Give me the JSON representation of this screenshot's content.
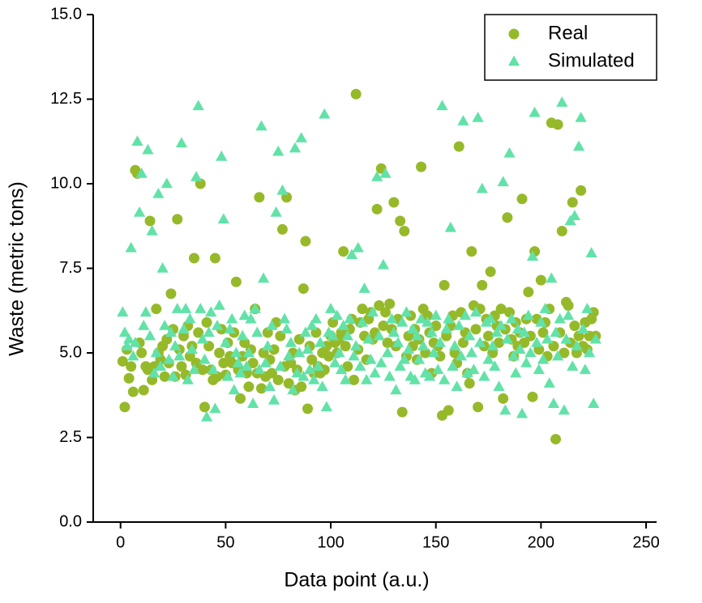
{
  "chart_data": {
    "type": "scatter",
    "x_label": "Data point (a.u.)",
    "y_label": "Waste (metric tons)",
    "xlim": [
      -13,
      255
    ],
    "ylim": [
      0,
      15
    ],
    "xticks": [
      0,
      50,
      100,
      150,
      200,
      250
    ],
    "yticks": [
      {
        "value": 0,
        "label": "0.0"
      },
      {
        "value": 2.5,
        "label": "2.5"
      },
      {
        "value": 5,
        "label": "5.0"
      },
      {
        "value": 7.5,
        "label": "7.5"
      },
      {
        "value": 10,
        "label": "10.0"
      },
      {
        "value": 12.5,
        "label": "12.5"
      },
      {
        "value": 15,
        "label": "15.0"
      }
    ],
    "legend": "upper right",
    "x": [
      1,
      2,
      3,
      4,
      5,
      6,
      7,
      8,
      9,
      10,
      11,
      12,
      13,
      14,
      15,
      16,
      17,
      18,
      19,
      20,
      21,
      22,
      23,
      24,
      25,
      26,
      27,
      28,
      29,
      30,
      31,
      32,
      33,
      34,
      35,
      36,
      37,
      38,
      39,
      40,
      41,
      42,
      43,
      44,
      45,
      46,
      47,
      48,
      49,
      50,
      51,
      52,
      53,
      54,
      55,
      56,
      57,
      58,
      59,
      60,
      61,
      62,
      63,
      64,
      65,
      66,
      67,
      68,
      69,
      70,
      71,
      72,
      73,
      74,
      75,
      76,
      77,
      78,
      79,
      80,
      81,
      82,
      83,
      84,
      85,
      86,
      87,
      88,
      89,
      90,
      91,
      92,
      93,
      94,
      95,
      96,
      97,
      98,
      99,
      100,
      101,
      102,
      103,
      104,
      105,
      106,
      107,
      108,
      109,
      110,
      111,
      112,
      113,
      114,
      115,
      116,
      117,
      118,
      119,
      120,
      121,
      122,
      123,
      124,
      125,
      126,
      127,
      128,
      129,
      130,
      131,
      132,
      133,
      134,
      135,
      136,
      137,
      138,
      139,
      140,
      141,
      142,
      143,
      144,
      145,
      146,
      147,
      148,
      149,
      150,
      151,
      152,
      153,
      154,
      155,
      156,
      157,
      158,
      159,
      160,
      161,
      162,
      163,
      164,
      165,
      166,
      167,
      168,
      169,
      170,
      171,
      172,
      173,
      174,
      175,
      176,
      177,
      178,
      179,
      180,
      181,
      182,
      183,
      184,
      185,
      186,
      187,
      188,
      189,
      190,
      191,
      192,
      193,
      194,
      195,
      196,
      197,
      198,
      199,
      200,
      201,
      202,
      203,
      204,
      205,
      206,
      207,
      208,
      209,
      210,
      211,
      212,
      213,
      214,
      215,
      216,
      217,
      218,
      219,
      220,
      221,
      222,
      223,
      224,
      225,
      226
    ],
    "series": [
      {
        "name": "Real",
        "color": "#96b92a",
        "marker": "circle",
        "values": [
          4.75,
          3.4,
          5.1,
          4.25,
          4.6,
          3.85,
          10.4,
          10.3,
          5.3,
          5.0,
          3.9,
          4.6,
          4.5,
          8.9,
          4.2,
          4.6,
          6.3,
          5.0,
          4.8,
          5.2,
          4.3,
          5.4,
          4.7,
          6.75,
          5.7,
          4.3,
          8.95,
          5.1,
          4.6,
          5.5,
          4.35,
          5.8,
          4.9,
          5.2,
          7.8,
          4.7,
          5.6,
          10.0,
          4.5,
          3.4,
          5.9,
          5.2,
          4.5,
          4.2,
          7.8,
          4.3,
          5.0,
          5.7,
          4.7,
          4.35,
          5.3,
          4.9,
          4.7,
          5.6,
          7.1,
          4.5,
          3.65,
          4.9,
          5.3,
          4.4,
          4.0,
          5.1,
          4.7,
          6.3,
          4.4,
          9.6,
          3.95,
          5.0,
          4.3,
          5.6,
          4.8,
          4.4,
          5.1,
          5.9,
          4.2,
          5.5,
          8.65,
          4.6,
          9.6,
          4.1,
          4.7,
          5.0,
          3.9,
          4.5,
          5.4,
          4.0,
          6.9,
          8.3,
          3.35,
          5.2,
          4.8,
          4.4,
          5.6,
          4.6,
          4.4,
          5.0,
          4.5,
          5.2,
          4.9,
          5.5,
          5.9,
          5.3,
          5.0,
          5.4,
          5.6,
          8.0,
          5.2,
          4.6,
          5.7,
          6.0,
          4.2,
          12.65,
          5.1,
          5.9,
          6.3,
          5.5,
          4.8,
          6.0,
          6.2,
          5.4,
          5.6,
          9.25,
          6.4,
          10.45,
          5.8,
          6.2,
          5.3,
          6.45,
          5.7,
          9.45,
          5.2,
          6.0,
          8.9,
          3.25,
          8.6,
          4.9,
          5.5,
          6.1,
          5.2,
          5.7,
          4.8,
          5.4,
          10.5,
          6.3,
          5.0,
          6.1,
          5.6,
          4.4,
          5.3,
          5.8,
          5.2,
          4.9,
          3.15,
          7.0,
          5.5,
          3.3,
          5.8,
          6.1,
          5.0,
          4.7,
          11.1,
          6.2,
          5.3,
          5.6,
          4.4,
          4.1,
          8.0,
          6.4,
          5.7,
          3.4,
          6.3,
          7.0,
          5.2,
          6.0,
          5.5,
          7.4,
          5.0,
          6.1,
          5.8,
          5.3,
          6.3,
          3.65,
          5.7,
          9.0,
          6.2,
          5.4,
          4.9,
          5.9,
          5.2,
          5.6,
          9.55,
          5.3,
          6.0,
          6.8,
          5.5,
          3.7,
          8.0,
          6.0,
          5.1,
          7.15,
          5.6,
          5.9,
          4.9,
          6.3,
          11.8,
          5.2,
          2.45,
          11.75,
          5.6,
          8.6,
          5.0,
          6.5,
          6.4,
          5.3,
          9.45,
          5.8,
          5.0,
          5.5,
          9.8,
          5.2,
          5.9,
          5.1,
          5.5,
          6.0,
          6.2,
          5.5
        ]
      },
      {
        "name": "Simulated",
        "color": "#62e2a8",
        "marker": "triangle",
        "values": [
          6.2,
          5.6,
          5.2,
          5.4,
          8.1,
          4.9,
          5.3,
          11.25,
          9.15,
          10.3,
          5.8,
          6.2,
          11.0,
          5.5,
          8.6,
          4.4,
          5.0,
          9.7,
          4.6,
          7.5,
          5.8,
          10.0,
          4.8,
          5.6,
          4.3,
          5.2,
          6.3,
          4.9,
          11.2,
          5.7,
          6.3,
          4.2,
          6.0,
          5.1,
          4.5,
          10.2,
          12.3,
          6.3,
          5.4,
          4.8,
          3.1,
          5.6,
          6.2,
          4.5,
          3.35,
          5.8,
          6.4,
          10.8,
          8.95,
          5.3,
          4.3,
          5.7,
          6.0,
          3.9,
          5.0,
          4.7,
          4.4,
          5.5,
          6.1,
          4.6,
          5.0,
          6.0,
          3.5,
          6.3,
          5.6,
          4.5,
          11.7,
          7.2,
          4.7,
          5.2,
          4.0,
          5.8,
          3.6,
          9.15,
          10.95,
          4.6,
          9.8,
          6.0,
          5.7,
          4.9,
          5.3,
          3.9,
          11.05,
          4.4,
          5.0,
          11.35,
          4.3,
          5.6,
          5.1,
          4.5,
          5.8,
          4.2,
          6.0,
          4.6,
          5.3,
          4.0,
          12.05,
          3.4,
          5.6,
          6.3,
          5.5,
          4.7,
          6.1,
          5.0,
          4.5,
          5.8,
          4.2,
          5.5,
          6.0,
          7.9,
          4.9,
          5.2,
          8.1,
          4.6,
          5.9,
          6.9,
          4.2,
          5.4,
          4.8,
          6.2,
          4.4,
          10.2,
          5.5,
          4.7,
          7.6,
          10.3,
          5.0,
          4.3,
          6.0,
          5.6,
          3.9,
          5.3,
          4.6,
          5.9,
          4.8,
          6.2,
          5.1,
          4.3,
          5.7,
          4.2,
          5.5,
          4.8,
          6.0,
          5.2,
          4.4,
          5.9,
          4.3,
          5.6,
          5.0,
          6.1,
          4.5,
          5.3,
          12.3,
          4.2,
          5.7,
          6.0,
          8.7,
          4.6,
          5.2,
          4.0,
          5.8,
          4.9,
          11.85,
          6.1,
          4.4,
          5.5,
          5.0,
          4.5,
          6.2,
          11.95,
          5.3,
          9.85,
          4.3,
          5.9,
          4.8,
          6.0,
          5.2,
          4.6,
          5.6,
          4.0,
          5.8,
          10.05,
          3.3,
          5.4,
          10.9,
          6.0,
          4.9,
          4.4,
          5.7,
          5.1,
          3.2,
          5.6,
          4.7,
          6.1,
          5.0,
          7.85,
          12.1,
          5.3,
          4.5,
          5.9,
          4.8,
          6.3,
          5.4,
          4.1,
          7.2,
          3.5,
          5.6,
          4.9,
          6.0,
          12.4,
          3.3,
          5.4,
          6.1,
          8.9,
          4.6,
          9.05,
          5.2,
          11.1,
          11.95,
          5.7,
          4.5,
          6.3,
          5.0,
          7.95,
          3.5,
          5.4
        ]
      }
    ]
  }
}
